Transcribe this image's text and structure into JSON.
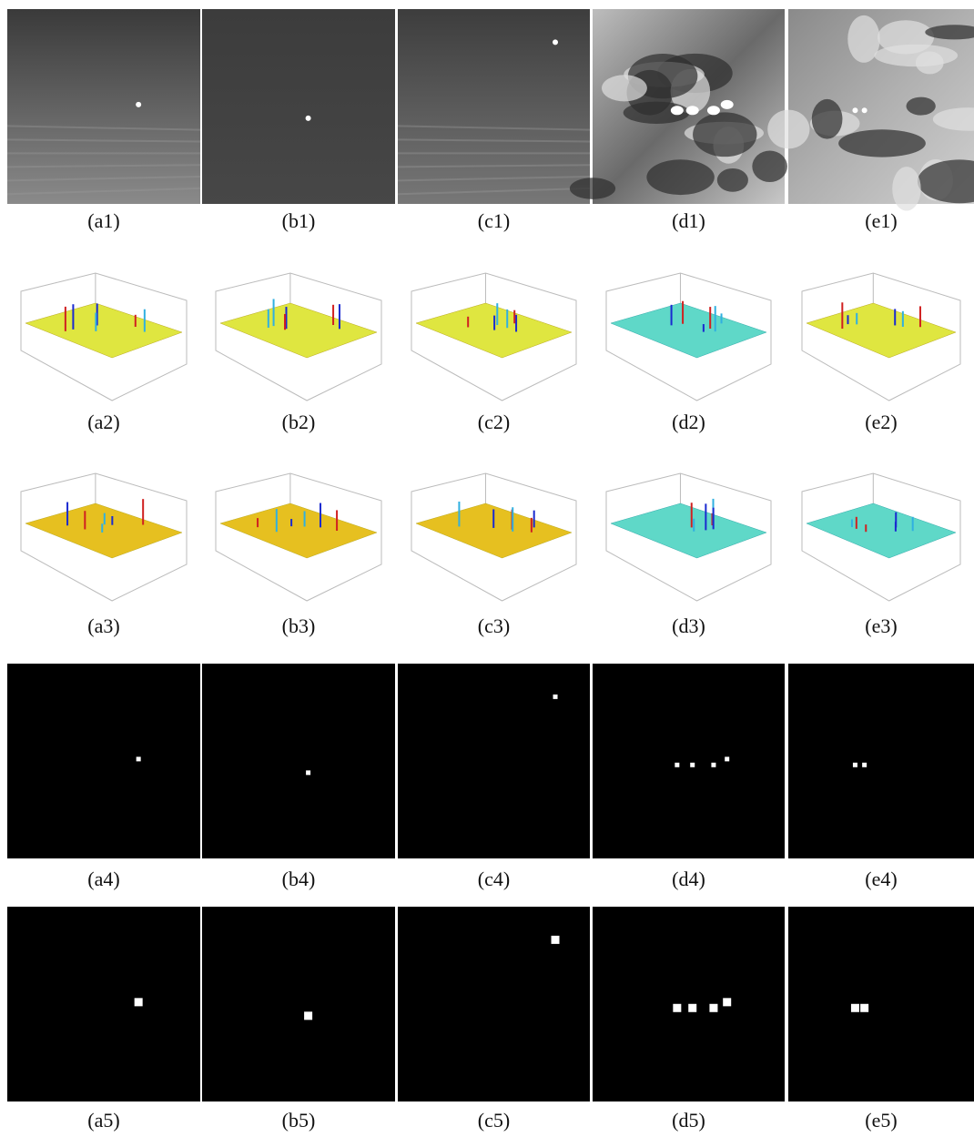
{
  "rows": [
    {
      "captions": [
        "(a1)",
        "(b1)",
        "(c1)",
        "(d1)",
        "(e1)"
      ]
    },
    {
      "captions": [
        "(a2)",
        "(b2)",
        "(c2)",
        "(d2)",
        "(e2)"
      ]
    },
    {
      "captions": [
        "(a3)",
        "(b3)",
        "(c3)",
        "(d3)",
        "(e3)"
      ]
    },
    {
      "captions": [
        "(a4)",
        "(b4)",
        "(c4)",
        "(d4)",
        "(e4)"
      ]
    },
    {
      "captions": [
        "(a5)",
        "(b5)",
        "(c5)",
        "(d5)",
        "(e5)"
      ]
    }
  ]
}
